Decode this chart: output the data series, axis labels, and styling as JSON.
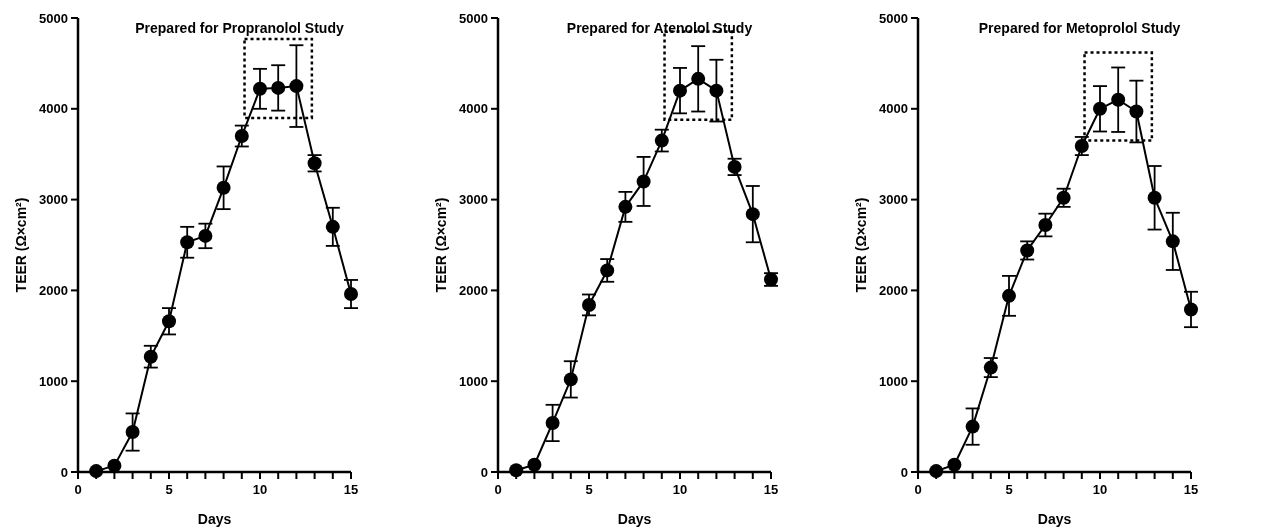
{
  "chart_data": [
    {
      "type": "line",
      "title": "Prepared for Propranolol Study",
      "xlabel": "Days",
      "ylabel": "TEER (Ω×cm²)",
      "xlim": [
        0,
        15
      ],
      "ylim": [
        0,
        5000
      ],
      "xticks": [
        0,
        {
          "value": 1,
          "label": null
        },
        {
          "value": 2,
          "label": null
        },
        {
          "value": 3,
          "label": null
        },
        {
          "value": 4,
          "label": null
        },
        5,
        {
          "value": 6,
          "label": null
        },
        {
          "value": 7,
          "label": null
        },
        {
          "value": 8,
          "label": null
        },
        {
          "value": 9,
          "label": null
        },
        10,
        {
          "value": 11,
          "label": null
        },
        {
          "value": 12,
          "label": null
        },
        {
          "value": 13,
          "label": null
        },
        {
          "value": 14,
          "label": null
        },
        15
      ],
      "yticks": [
        0,
        1000,
        2000,
        3000,
        4000,
        5000
      ],
      "marker": "circle",
      "line_style": "solid",
      "x": [
        1,
        2,
        3,
        4,
        5,
        6,
        7,
        8,
        9,
        10,
        11,
        12,
        13,
        14,
        15
      ],
      "series": [
        {
          "color": "#000000",
          "values": [
            10,
            70,
            440,
            1270,
            1660,
            2530,
            2600,
            3130,
            3700,
            4220,
            4230,
            4250,
            3400,
            2700,
            1960
          ],
          "errors": [
            null,
            null,
            205,
            120,
            145,
            170,
            135,
            235,
            115,
            220,
            250,
            450,
            90,
            210,
            155
          ]
        }
      ]
    },
    {
      "type": "line",
      "title": "Prepared for Atenolol Study",
      "xlabel": "Days",
      "ylabel": "TEER (Ω×cm²)",
      "xlim": [
        0,
        15
      ],
      "ylim": [
        0,
        5000
      ],
      "xticks": [
        0,
        {
          "value": 1,
          "label": null
        },
        {
          "value": 2,
          "label": null
        },
        {
          "value": 3,
          "label": null
        },
        {
          "value": 4,
          "label": null
        },
        5,
        {
          "value": 6,
          "label": null
        },
        {
          "value": 7,
          "label": null
        },
        {
          "value": 8,
          "label": null
        },
        {
          "value": 9,
          "label": null
        },
        10,
        {
          "value": 11,
          "label": null
        },
        {
          "value": 12,
          "label": null
        },
        {
          "value": 13,
          "label": null
        },
        {
          "value": 14,
          "label": null
        },
        15
      ],
      "yticks": [
        0,
        1000,
        2000,
        3000,
        4000,
        5000
      ],
      "marker": "circle",
      "line_style": "solid",
      "x": [
        1,
        2,
        3,
        4,
        5,
        6,
        7,
        8,
        9,
        10,
        11,
        12,
        13,
        14,
        15
      ],
      "series": [
        {
          "color": "#000000",
          "values": [
            20,
            80,
            540,
            1020,
            1840,
            2220,
            2920,
            3200,
            3650,
            4200,
            4330,
            4200,
            3360,
            2840,
            2120
          ],
          "errors": [
            null,
            null,
            200,
            200,
            115,
            125,
            165,
            270,
            120,
            250,
            360,
            340,
            90,
            310,
            70
          ]
        }
      ]
    },
    {
      "type": "line",
      "title": "Prepared for Metoprolol Study",
      "xlabel": "Days",
      "ylabel": "TEER (Ω×cm²)",
      "xlim": [
        0,
        15
      ],
      "ylim": [
        0,
        5000
      ],
      "xticks": [
        0,
        {
          "value": 1,
          "label": null
        },
        {
          "value": 2,
          "label": null
        },
        {
          "value": 3,
          "label": null
        },
        {
          "value": 4,
          "label": null
        },
        5,
        {
          "value": 6,
          "label": null
        },
        {
          "value": 7,
          "label": null
        },
        {
          "value": 8,
          "label": null
        },
        {
          "value": 9,
          "label": null
        },
        10,
        {
          "value": 11,
          "label": null
        },
        {
          "value": 12,
          "label": null
        },
        {
          "value": 13,
          "label": null
        },
        {
          "value": 14,
          "label": null
        },
        15
      ],
      "yticks": [
        0,
        1000,
        2000,
        3000,
        4000,
        5000
      ],
      "marker": "circle",
      "line_style": "solid",
      "x": [
        1,
        2,
        3,
        4,
        5,
        6,
        7,
        8,
        9,
        10,
        11,
        12,
        13,
        14,
        15
      ],
      "series": [
        {
          "color": "#000000",
          "values": [
            10,
            80,
            500,
            1150,
            1940,
            2440,
            2720,
            3020,
            3590,
            4000,
            4100,
            3970,
            3020,
            2540,
            1790
          ],
          "errors": [
            null,
            null,
            200,
            105,
            220,
            100,
            125,
            100,
            100,
            250,
            355,
            340,
            350,
            315,
            195
          ]
        }
      ]
    }
  ]
}
